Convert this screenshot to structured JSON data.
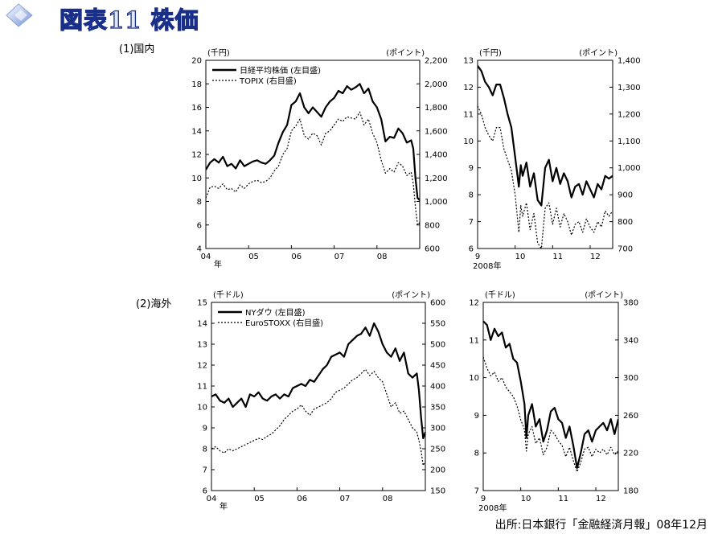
{
  "title": "図表11 株価",
  "section1_label": "(1)国内",
  "section2_label": "(2)海外",
  "source": "出所:日本銀行「金融経済月報」08年12月",
  "chart_data": [
    {
      "id": "domestic-long",
      "type": "line",
      "left_unit": "(千円)",
      "right_unit": "(ポイント)",
      "x_ticks": [
        "04",
        "05",
        "06",
        "07",
        "08"
      ],
      "x_sub": "年",
      "x_range": [
        2004.0,
        2009.0
      ],
      "ylim_left": [
        4,
        20
      ],
      "ylim_right": [
        600,
        2200
      ],
      "y_ticks_left": [
        "4",
        "6",
        "8",
        "10",
        "12",
        "14",
        "16",
        "18",
        "20"
      ],
      "y_ticks_right": [
        "600",
        "800",
        "1,000",
        "1,200",
        "1,400",
        "1,600",
        "1,800",
        "2,000",
        "2,200"
      ],
      "legend": [
        "日経平均株価 (左目盛)",
        "TOPIX (右目盛)"
      ],
      "series": [
        {
          "name": "日経平均株価 (左目盛)",
          "axis": "left",
          "style": "solid",
          "x": [
            2004.0,
            2004.1,
            2004.2,
            2004.3,
            2004.4,
            2004.5,
            2004.6,
            2004.7,
            2004.8,
            2004.9,
            2005.0,
            2005.1,
            2005.2,
            2005.3,
            2005.4,
            2005.5,
            2005.6,
            2005.7,
            2005.8,
            2005.9,
            2006.0,
            2006.1,
            2006.2,
            2006.3,
            2006.4,
            2006.5,
            2006.6,
            2006.7,
            2006.8,
            2006.9,
            2007.0,
            2007.1,
            2007.2,
            2007.3,
            2007.4,
            2007.5,
            2007.6,
            2007.7,
            2007.8,
            2007.9,
            2008.0,
            2008.1,
            2008.2,
            2008.3,
            2008.4,
            2008.5,
            2008.6,
            2008.7,
            2008.8,
            2008.85,
            2008.9,
            2008.95,
            2009.0
          ],
          "y": [
            10.7,
            11.3,
            11.6,
            11.3,
            11.8,
            11.0,
            11.2,
            10.8,
            11.5,
            11.0,
            11.2,
            11.4,
            11.5,
            11.3,
            11.2,
            11.5,
            11.9,
            13.0,
            13.9,
            14.5,
            16.2,
            16.5,
            17.2,
            16.0,
            15.5,
            16.0,
            15.6,
            15.2,
            16.0,
            16.5,
            16.8,
            17.4,
            17.2,
            17.8,
            17.5,
            17.7,
            18.0,
            17.2,
            17.6,
            16.5,
            16.0,
            15.0,
            13.1,
            13.5,
            13.4,
            14.2,
            13.8,
            13.0,
            13.2,
            12.5,
            10.0,
            8.3,
            8.1
          ]
        },
        {
          "name": "TOPIX (右目盛)",
          "axis": "right",
          "style": "dotted",
          "x": [
            2004.0,
            2004.1,
            2004.2,
            2004.3,
            2004.4,
            2004.5,
            2004.6,
            2004.7,
            2004.8,
            2004.9,
            2005.0,
            2005.1,
            2005.2,
            2005.3,
            2005.4,
            2005.5,
            2005.6,
            2005.7,
            2005.8,
            2005.9,
            2006.0,
            2006.1,
            2006.2,
            2006.3,
            2006.4,
            2006.5,
            2006.6,
            2006.7,
            2006.8,
            2006.9,
            2007.0,
            2007.1,
            2007.2,
            2007.3,
            2007.4,
            2007.5,
            2007.6,
            2007.7,
            2007.8,
            2007.9,
            2008.0,
            2008.1,
            2008.2,
            2008.3,
            2008.4,
            2008.5,
            2008.6,
            2008.7,
            2008.8,
            2008.85,
            2008.9,
            2008.95,
            2009.0
          ],
          "y": [
            1030,
            1120,
            1130,
            1110,
            1150,
            1100,
            1110,
            1080,
            1140,
            1110,
            1150,
            1170,
            1180,
            1160,
            1170,
            1200,
            1260,
            1300,
            1400,
            1450,
            1600,
            1640,
            1700,
            1560,
            1530,
            1580,
            1560,
            1480,
            1580,
            1600,
            1650,
            1700,
            1680,
            1720,
            1710,
            1700,
            1760,
            1650,
            1700,
            1580,
            1500,
            1350,
            1240,
            1280,
            1250,
            1330,
            1300,
            1220,
            1250,
            1150,
            950,
            800,
            820
          ]
        }
      ]
    },
    {
      "id": "domestic-short",
      "type": "line",
      "left_unit": "(千円)",
      "right_unit": "(ポイント)",
      "x_ticks": [
        "9",
        "10",
        "11",
        "12"
      ],
      "x_sub": "2008年",
      "x_range": [
        9.0,
        12.6
      ],
      "ylim_left": [
        6,
        13
      ],
      "ylim_right": [
        700,
        1400
      ],
      "y_ticks_left": [
        "6",
        "7",
        "8",
        "9",
        "10",
        "11",
        "12",
        "13"
      ],
      "y_ticks_right": [
        "700",
        "800",
        "900",
        "1,000",
        "1,100",
        "1,200",
        "1,300",
        "1,400"
      ],
      "series": [
        {
          "name": "日経平均株価 (左目盛)",
          "axis": "left",
          "style": "solid",
          "x": [
            9.0,
            9.1,
            9.2,
            9.3,
            9.4,
            9.5,
            9.6,
            9.7,
            9.8,
            9.9,
            10.0,
            10.1,
            10.15,
            10.2,
            10.3,
            10.4,
            10.5,
            10.6,
            10.7,
            10.8,
            10.9,
            11.0,
            11.1,
            11.2,
            11.3,
            11.4,
            11.5,
            11.6,
            11.7,
            11.8,
            11.9,
            12.0,
            12.1,
            12.2,
            12.3,
            12.4,
            12.5,
            12.6
          ],
          "y": [
            12.8,
            12.6,
            12.2,
            12.0,
            11.7,
            12.1,
            12.1,
            11.6,
            11.0,
            10.5,
            9.4,
            8.3,
            9.1,
            8.7,
            9.2,
            8.3,
            8.8,
            7.8,
            7.6,
            9.0,
            9.3,
            8.5,
            9.0,
            8.4,
            8.8,
            8.5,
            7.9,
            8.3,
            8.4,
            8.0,
            8.5,
            8.2,
            7.9,
            8.4,
            8.2,
            8.7,
            8.6,
            8.7
          ]
        },
        {
          "name": "TOPIX (右目盛)",
          "axis": "right",
          "style": "dotted",
          "x": [
            9.0,
            9.1,
            9.2,
            9.3,
            9.4,
            9.5,
            9.6,
            9.7,
            9.8,
            9.9,
            10.0,
            10.1,
            10.15,
            10.2,
            10.3,
            10.4,
            10.5,
            10.6,
            10.7,
            10.8,
            10.9,
            11.0,
            11.1,
            11.2,
            11.3,
            11.4,
            11.5,
            11.6,
            11.7,
            11.8,
            11.9,
            12.0,
            12.1,
            12.2,
            12.3,
            12.4,
            12.5,
            12.6
          ],
          "y": [
            1230,
            1200,
            1150,
            1120,
            1100,
            1150,
            1150,
            1070,
            1030,
            990,
            900,
            760,
            860,
            820,
            870,
            770,
            830,
            720,
            700,
            850,
            870,
            790,
            850,
            780,
            830,
            800,
            750,
            790,
            800,
            760,
            810,
            780,
            760,
            800,
            780,
            840,
            820,
            840
          ]
        }
      ]
    },
    {
      "id": "overseas-long",
      "type": "line",
      "left_unit": "(千ドル)",
      "right_unit": "(ポイント)",
      "x_ticks": [
        "04",
        "05",
        "06",
        "07",
        "08"
      ],
      "x_sub": "年",
      "x_range": [
        2004.0,
        2009.0
      ],
      "ylim_left": [
        6,
        15
      ],
      "ylim_right": [
        150,
        600
      ],
      "y_ticks_left": [
        "6",
        "7",
        "8",
        "9",
        "10",
        "11",
        "12",
        "13",
        "14",
        "15"
      ],
      "y_ticks_right": [
        "150",
        "200",
        "250",
        "300",
        "350",
        "400",
        "450",
        "500",
        "550",
        "600"
      ],
      "legend": [
        "NYダウ (左目盛)",
        "EuroSTOXX (右目盛)"
      ],
      "series": [
        {
          "name": "NYダウ (左目盛)",
          "axis": "left",
          "style": "solid",
          "x": [
            2004.0,
            2004.1,
            2004.2,
            2004.3,
            2004.4,
            2004.5,
            2004.6,
            2004.7,
            2004.8,
            2004.9,
            2005.0,
            2005.1,
            2005.2,
            2005.3,
            2005.4,
            2005.5,
            2005.6,
            2005.7,
            2005.8,
            2005.9,
            2006.0,
            2006.1,
            2006.2,
            2006.3,
            2006.4,
            2006.5,
            2006.6,
            2006.7,
            2006.8,
            2006.9,
            2007.0,
            2007.1,
            2007.2,
            2007.3,
            2007.4,
            2007.5,
            2007.6,
            2007.7,
            2007.8,
            2007.9,
            2008.0,
            2008.1,
            2008.2,
            2008.3,
            2008.4,
            2008.5,
            2008.6,
            2008.7,
            2008.8,
            2008.85,
            2008.9,
            2008.95,
            2009.0
          ],
          "y": [
            10.5,
            10.6,
            10.3,
            10.2,
            10.4,
            10.0,
            10.2,
            10.4,
            10.0,
            10.6,
            10.5,
            10.7,
            10.4,
            10.3,
            10.5,
            10.6,
            10.4,
            10.6,
            10.5,
            10.9,
            11.0,
            11.1,
            11.0,
            11.3,
            11.2,
            11.5,
            11.8,
            12.0,
            12.4,
            12.5,
            12.6,
            12.4,
            13.0,
            13.2,
            13.4,
            13.5,
            13.8,
            13.4,
            14.0,
            13.6,
            13.0,
            12.6,
            12.4,
            12.8,
            12.2,
            12.6,
            11.6,
            11.4,
            11.6,
            10.8,
            9.5,
            8.5,
            8.8
          ]
        },
        {
          "name": "EuroSTOXX (右目盛)",
          "axis": "right",
          "style": "dotted",
          "x": [
            2004.0,
            2004.1,
            2004.2,
            2004.3,
            2004.4,
            2004.5,
            2004.6,
            2004.7,
            2004.8,
            2004.9,
            2005.0,
            2005.1,
            2005.2,
            2005.3,
            2005.4,
            2005.5,
            2005.6,
            2005.7,
            2005.8,
            2005.9,
            2006.0,
            2006.1,
            2006.2,
            2006.3,
            2006.4,
            2006.5,
            2006.6,
            2006.7,
            2006.8,
            2006.9,
            2007.0,
            2007.1,
            2007.2,
            2007.3,
            2007.4,
            2007.5,
            2007.6,
            2007.7,
            2007.8,
            2007.9,
            2008.0,
            2008.1,
            2008.2,
            2008.3,
            2008.4,
            2008.5,
            2008.6,
            2008.7,
            2008.8,
            2008.85,
            2008.9,
            2008.95,
            2009.0
          ],
          "y": [
            250,
            255,
            245,
            240,
            250,
            245,
            250,
            255,
            260,
            265,
            270,
            275,
            272,
            280,
            285,
            295,
            305,
            320,
            330,
            340,
            345,
            355,
            340,
            330,
            345,
            350,
            355,
            360,
            370,
            385,
            390,
            395,
            405,
            415,
            420,
            430,
            440,
            425,
            435,
            420,
            410,
            380,
            350,
            360,
            335,
            340,
            320,
            300,
            290,
            270,
            245,
            210,
            220
          ]
        }
      ]
    },
    {
      "id": "overseas-short",
      "type": "line",
      "left_unit": "(千ドル)",
      "right_unit": "(ポイント)",
      "x_ticks": [
        "9",
        "10",
        "11",
        "12"
      ],
      "x_sub": "2008年",
      "x_range": [
        9.0,
        12.6
      ],
      "ylim_left": [
        7,
        12
      ],
      "ylim_right": [
        180,
        380
      ],
      "y_ticks_left": [
        "7",
        "8",
        "9",
        "10",
        "11",
        "12"
      ],
      "y_ticks_right": [
        "180",
        "220",
        "260",
        "300",
        "340",
        "380"
      ],
      "series": [
        {
          "name": "NYダウ (左目盛)",
          "axis": "left",
          "style": "solid",
          "x": [
            9.0,
            9.1,
            9.2,
            9.3,
            9.4,
            9.5,
            9.6,
            9.7,
            9.8,
            9.9,
            10.0,
            10.1,
            10.15,
            10.2,
            10.3,
            10.4,
            10.5,
            10.6,
            10.7,
            10.8,
            10.9,
            11.0,
            11.1,
            11.2,
            11.3,
            11.4,
            11.5,
            11.6,
            11.7,
            11.8,
            11.9,
            12.0,
            12.1,
            12.2,
            12.3,
            12.4,
            12.5,
            12.6
          ],
          "y": [
            11.5,
            11.4,
            11.0,
            11.3,
            11.1,
            11.2,
            10.8,
            10.9,
            10.5,
            10.4,
            9.9,
            9.3,
            8.4,
            9.0,
            9.3,
            8.7,
            8.9,
            8.3,
            8.6,
            9.1,
            9.2,
            8.9,
            8.8,
            8.4,
            8.7,
            8.2,
            7.6,
            8.0,
            8.5,
            8.6,
            8.3,
            8.6,
            8.7,
            8.8,
            8.6,
            8.9,
            8.5,
            8.9
          ]
        },
        {
          "name": "EuroSTOXX (右目盛)",
          "axis": "right",
          "style": "dotted",
          "x": [
            9.0,
            9.1,
            9.2,
            9.3,
            9.4,
            9.5,
            9.6,
            9.7,
            9.8,
            9.9,
            10.0,
            10.1,
            10.15,
            10.2,
            10.3,
            10.4,
            10.5,
            10.6,
            10.7,
            10.8,
            10.9,
            11.0,
            11.1,
            11.2,
            11.3,
            11.4,
            11.5,
            11.6,
            11.7,
            11.8,
            11.9,
            12.0,
            12.1,
            12.2,
            12.3,
            12.4,
            12.5,
            12.6
          ],
          "y": [
            322,
            310,
            302,
            306,
            296,
            300,
            290,
            285,
            280,
            270,
            255,
            245,
            222,
            240,
            248,
            230,
            236,
            218,
            226,
            244,
            240,
            233,
            228,
            216,
            226,
            212,
            200,
            210,
            224,
            226,
            216,
            224,
            220,
            224,
            218,
            226,
            218,
            222
          ]
        }
      ]
    }
  ]
}
